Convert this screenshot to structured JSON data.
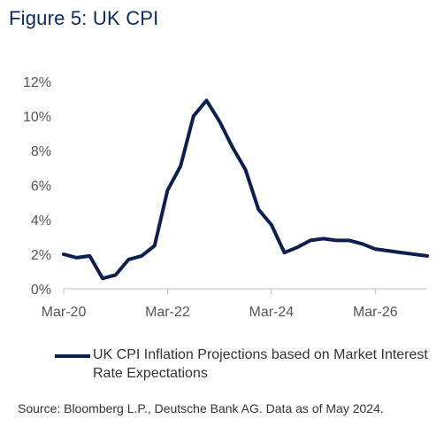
{
  "figure_title": "Figure 5: UK CPI",
  "source_note": "Source: Bloomberg L.P., Deutsche Bank AG. Data as of May 2024.",
  "colors": {
    "series": "#0d1f4f",
    "title": "#0a2a5c",
    "axis": "#bdbdbd",
    "tick_text": "#555555"
  },
  "chart_data": {
    "type": "line",
    "title": "",
    "xlabel": "",
    "ylabel": "",
    "x_ticks": [
      "Mar-20",
      "Mar-22",
      "Mar-24",
      "Mar-26"
    ],
    "y_ticks": [
      "0%",
      "2%",
      "4%",
      "6%",
      "8%",
      "10%",
      "12%"
    ],
    "xlim": [
      "2020-03",
      "2027-03"
    ],
    "ylim": [
      0,
      12
    ],
    "grid": false,
    "legend_position": "bottom",
    "series": [
      {
        "name": "UK CPI Inflation Projections based on Market Interest Rate Expectations",
        "x": [
          "2020-03",
          "2020-06",
          "2020-09",
          "2020-12",
          "2021-03",
          "2021-06",
          "2021-09",
          "2021-12",
          "2022-03",
          "2022-06",
          "2022-09",
          "2022-12",
          "2023-03",
          "2023-06",
          "2023-09",
          "2023-12",
          "2024-03",
          "2024-06",
          "2024-09",
          "2024-12",
          "2025-03",
          "2025-06",
          "2025-09",
          "2025-12",
          "2026-03",
          "2026-06",
          "2026-09",
          "2026-12",
          "2027-03"
        ],
        "values": [
          2.0,
          1.8,
          1.9,
          0.6,
          0.8,
          1.7,
          1.9,
          2.5,
          5.7,
          7.1,
          10.0,
          10.9,
          9.7,
          8.2,
          6.9,
          4.6,
          3.7,
          2.1,
          2.4,
          2.8,
          2.9,
          2.8,
          2.8,
          2.6,
          2.3,
          2.2,
          2.1,
          2.0,
          1.9
        ]
      }
    ]
  }
}
